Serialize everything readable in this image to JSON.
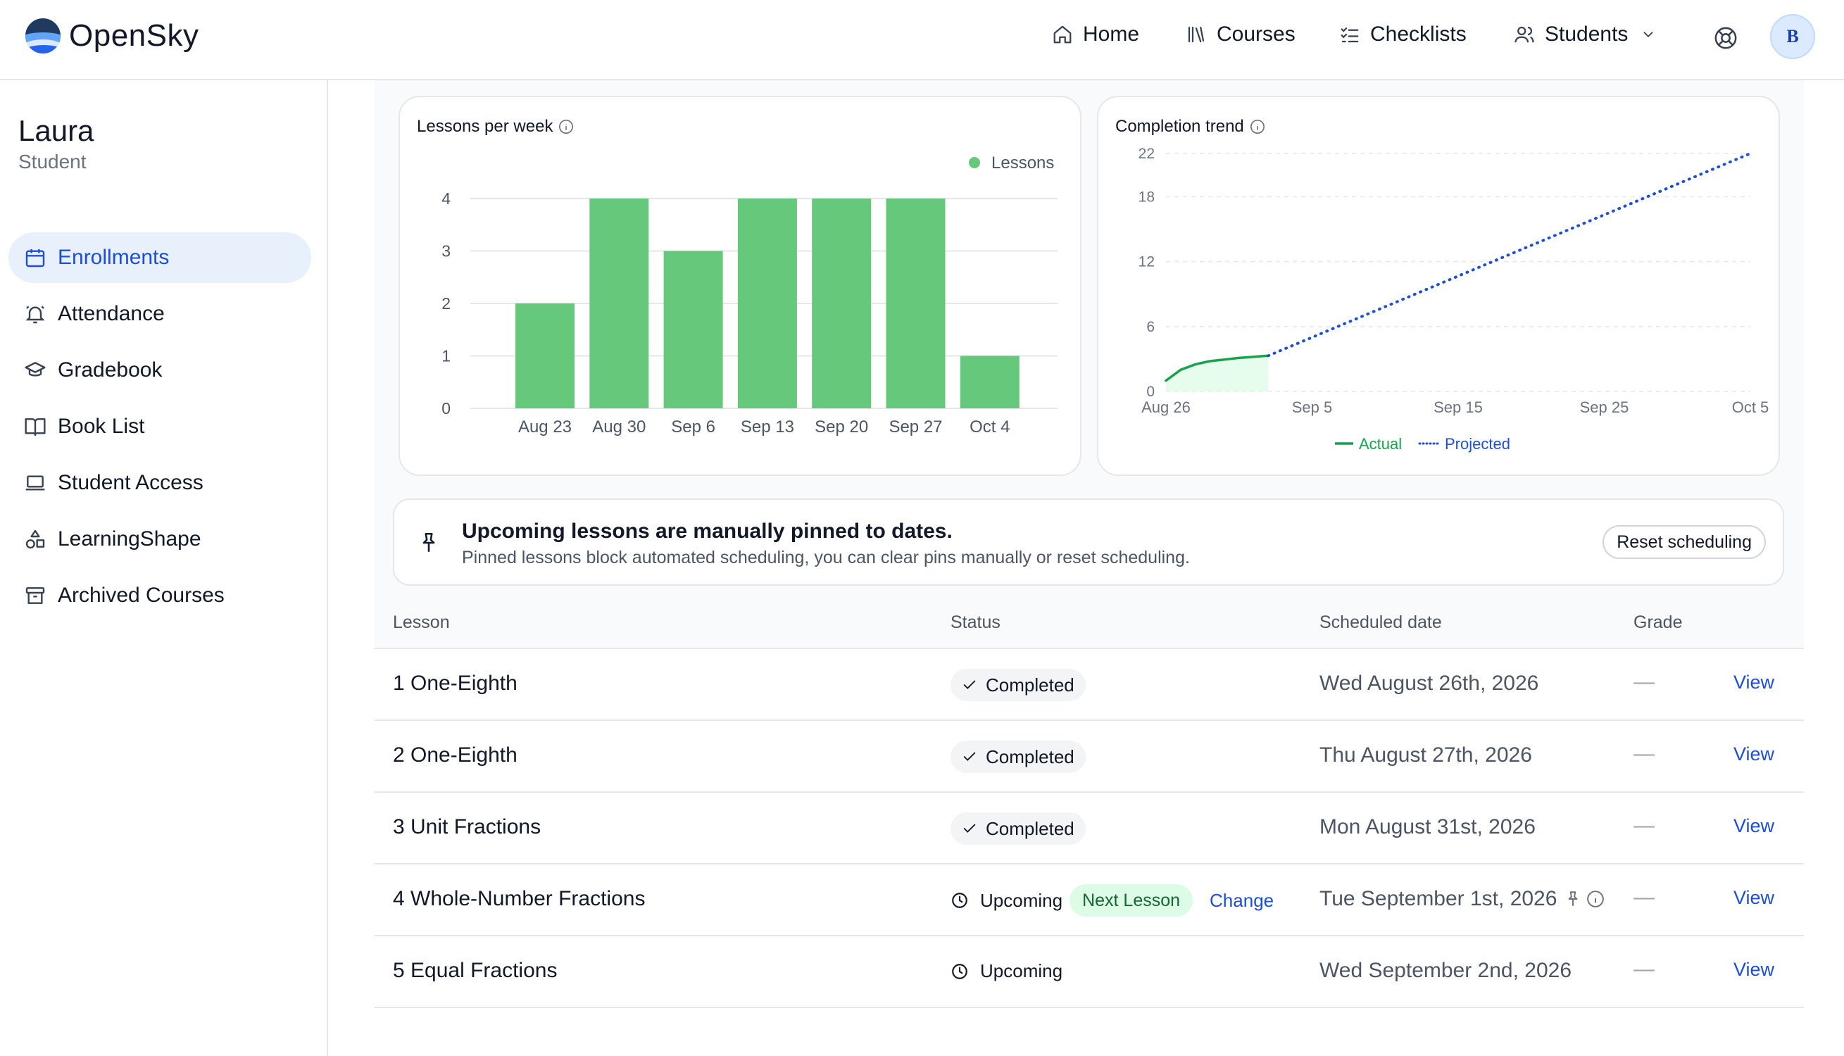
{
  "app": {
    "name": "OpenSky",
    "avatar_initial": "B"
  },
  "nav": {
    "home": "Home",
    "courses": "Courses",
    "checklists": "Checklists",
    "students": "Students"
  },
  "student": {
    "name": "Laura",
    "role": "Student"
  },
  "sidebar": {
    "items": [
      {
        "label": "Enrollments",
        "icon": "calendar-icon",
        "active": true
      },
      {
        "label": "Attendance",
        "icon": "bell-icon"
      },
      {
        "label": "Gradebook",
        "icon": "graduation-cap-icon"
      },
      {
        "label": "Book List",
        "icon": "book-open-icon"
      },
      {
        "label": "Student Access",
        "icon": "laptop-icon"
      },
      {
        "label": "LearningShape",
        "icon": "shapes-icon"
      },
      {
        "label": "Archived Courses",
        "icon": "archive-icon"
      }
    ]
  },
  "chart_data": [
    {
      "type": "bar",
      "title": "Lessons per week",
      "categories": [
        "Aug 23",
        "Aug 30",
        "Sep 6",
        "Sep 13",
        "Sep 20",
        "Sep 27",
        "Oct 4"
      ],
      "series": [
        {
          "name": "Lessons",
          "values": [
            2,
            4,
            3,
            4,
            4,
            4,
            1
          ],
          "color": "#66c87a"
        }
      ],
      "ylim": [
        0,
        4
      ],
      "yticks": [
        0,
        1,
        2,
        3,
        4
      ],
      "grid": true,
      "legend": "top-right"
    },
    {
      "type": "line",
      "title": "Completion trend",
      "xticks": [
        "Aug 26",
        "Sep 5",
        "Sep 15",
        "Sep 25",
        "Oct 5"
      ],
      "xlim": [
        "2026-08-26",
        "2026-10-05"
      ],
      "ylim": [
        0,
        22
      ],
      "yticks": [
        0,
        6,
        12,
        18,
        22
      ],
      "grid": true,
      "legend": "bottom-center",
      "series": [
        {
          "name": "Actual",
          "color": "#16a34a",
          "style": "solid",
          "area": true,
          "x": [
            "2026-08-26",
            "2026-08-27",
            "2026-08-28",
            "2026-08-29",
            "2026-08-31",
            "2026-09-02"
          ],
          "y": [
            1,
            2,
            2.5,
            2.8,
            3.1,
            3.3
          ]
        },
        {
          "name": "Projected",
          "color": "#1d4ed8",
          "style": "dotted",
          "x": [
            "2026-09-02",
            "2026-10-05"
          ],
          "y": [
            3.3,
            22
          ]
        }
      ]
    }
  ],
  "banner": {
    "title": "Upcoming lessons are manually pinned to dates.",
    "subtitle": "Pinned lessons block automated scheduling, you can clear pins manually or reset scheduling.",
    "reset_label": "Reset scheduling"
  },
  "table": {
    "headers": {
      "lesson": "Lesson",
      "status": "Status",
      "scheduled": "Scheduled date",
      "grade": "Grade"
    },
    "rows": [
      {
        "lesson": "1 One-Eighth",
        "status": "Completed",
        "date": "Wed August 26th, 2026",
        "grade": "—",
        "action": "View"
      },
      {
        "lesson": "2 One-Eighth",
        "status": "Completed",
        "date": "Thu August 27th, 2026",
        "grade": "—",
        "action": "View"
      },
      {
        "lesson": "3 Unit Fractions",
        "status": "Completed",
        "date": "Mon August 31st, 2026",
        "grade": "—",
        "action": "View"
      },
      {
        "lesson": "4 Whole-Number Fractions",
        "status": "Upcoming",
        "badge": "Next Lesson",
        "change": "Change",
        "date": "Tue September 1st, 2026",
        "grade": "—",
        "action": "View"
      },
      {
        "lesson": "5 Equal Fractions",
        "status": "Upcoming",
        "date": "Wed September 2nd, 2026",
        "grade": "—",
        "action": "View"
      }
    ]
  }
}
